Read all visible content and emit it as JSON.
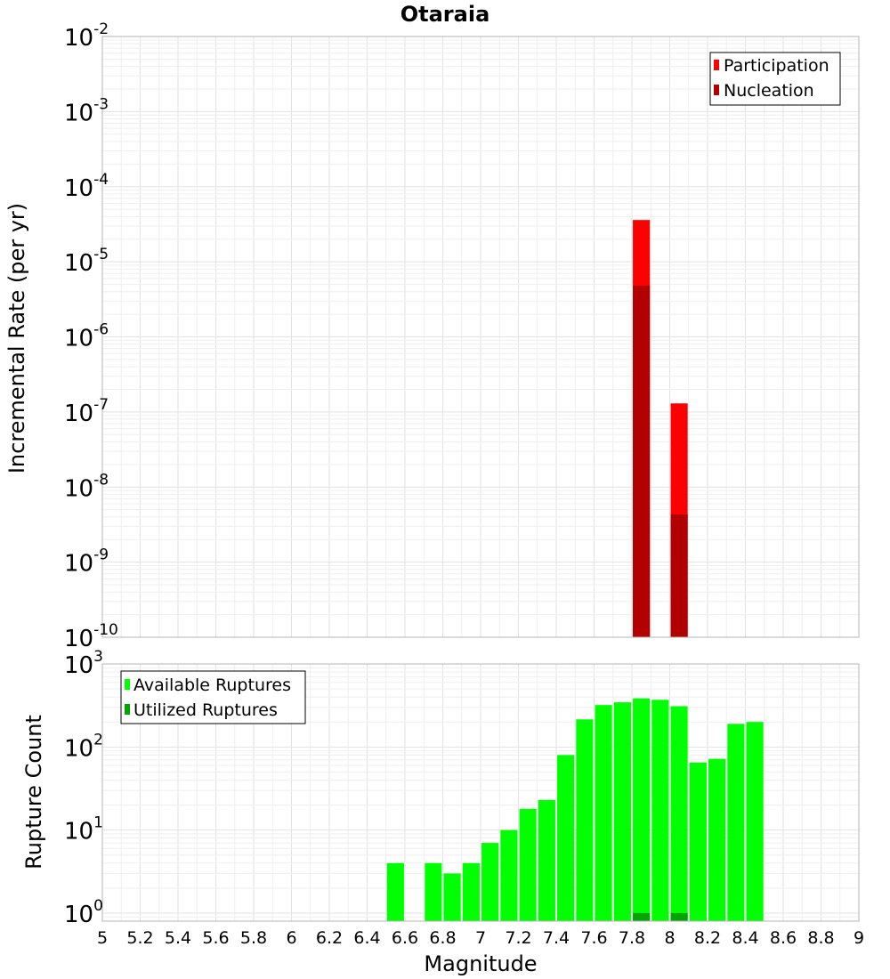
{
  "title": "Otaraia",
  "xlabel": "Magnitude",
  "colors": {
    "participation": "#ff0000",
    "nucleation": "#b20000",
    "available": "#00ff00",
    "utilized": "#00a500"
  },
  "chart_data": [
    {
      "type": "bar",
      "ylabel": "Incremental Rate (per yr)",
      "yscale": "log",
      "ylim": [
        1e-10,
        0.01
      ],
      "xlim": [
        5,
        9
      ],
      "grid": true,
      "legend_position": "top-right",
      "bar_width": 0.09,
      "series": [
        {
          "name": "Participation",
          "color": "#ff0000",
          "x": [
            7.85,
            8.05
          ],
          "values": [
            3.6e-05,
            1.3e-07
          ]
        },
        {
          "name": "Nucleation",
          "color": "#b20000",
          "x": [
            7.85,
            8.05
          ],
          "values": [
            4.8e-06,
            4.3e-09
          ]
        }
      ]
    },
    {
      "type": "bar",
      "ylabel": "Rupture Count",
      "yscale": "log",
      "ylim": [
        0.8,
        1000
      ],
      "xlim": [
        5,
        9
      ],
      "grid": true,
      "legend_position": "top-left",
      "bar_width": 0.09,
      "series": [
        {
          "name": "Available Ruptures",
          "color": "#00ff00",
          "x": [
            6.55,
            6.75,
            6.85,
            6.95,
            7.05,
            7.15,
            7.25,
            7.35,
            7.45,
            7.55,
            7.65,
            7.75,
            7.85,
            7.95,
            8.05,
            8.15,
            8.25,
            8.35,
            8.45
          ],
          "values": [
            4,
            4,
            3,
            4,
            7,
            10,
            18,
            23,
            80,
            215,
            320,
            345,
            385,
            370,
            310,
            65,
            72,
            190,
            200
          ]
        },
        {
          "name": "Utilized Ruptures",
          "color": "#00a500",
          "x": [
            7.85,
            8.05
          ],
          "values": [
            1,
            1
          ]
        }
      ]
    }
  ],
  "x_ticks": [
    "5",
    "5.2",
    "5.4",
    "5.6",
    "5.8",
    "6",
    "6.2",
    "6.4",
    "6.6",
    "6.8",
    "7",
    "7.2",
    "7.4",
    "7.6",
    "7.8",
    "8",
    "8.2",
    "8.4",
    "8.6",
    "8.8",
    "9"
  ],
  "top_y_ticks": [
    {
      "base": "10",
      "exp": "-2",
      "value": 0.01
    },
    {
      "base": "10",
      "exp": "-3",
      "value": 0.001
    },
    {
      "base": "10",
      "exp": "-4",
      "value": 0.0001
    },
    {
      "base": "10",
      "exp": "-5",
      "value": 1e-05
    },
    {
      "base": "10",
      "exp": "-6",
      "value": 1e-06
    },
    {
      "base": "10",
      "exp": "-7",
      "value": 1e-07
    },
    {
      "base": "10",
      "exp": "-8",
      "value": 1e-08
    },
    {
      "base": "10",
      "exp": "-9",
      "value": 1e-09
    },
    {
      "base": "10",
      "exp": "-10",
      "value": 1e-10
    }
  ],
  "bottom_y_ticks": [
    {
      "base": "10",
      "exp": "3",
      "value": 1000
    },
    {
      "base": "10",
      "exp": "2",
      "value": 100
    },
    {
      "base": "10",
      "exp": "1",
      "value": 10
    },
    {
      "base": "10",
      "exp": "0",
      "value": 1
    }
  ]
}
